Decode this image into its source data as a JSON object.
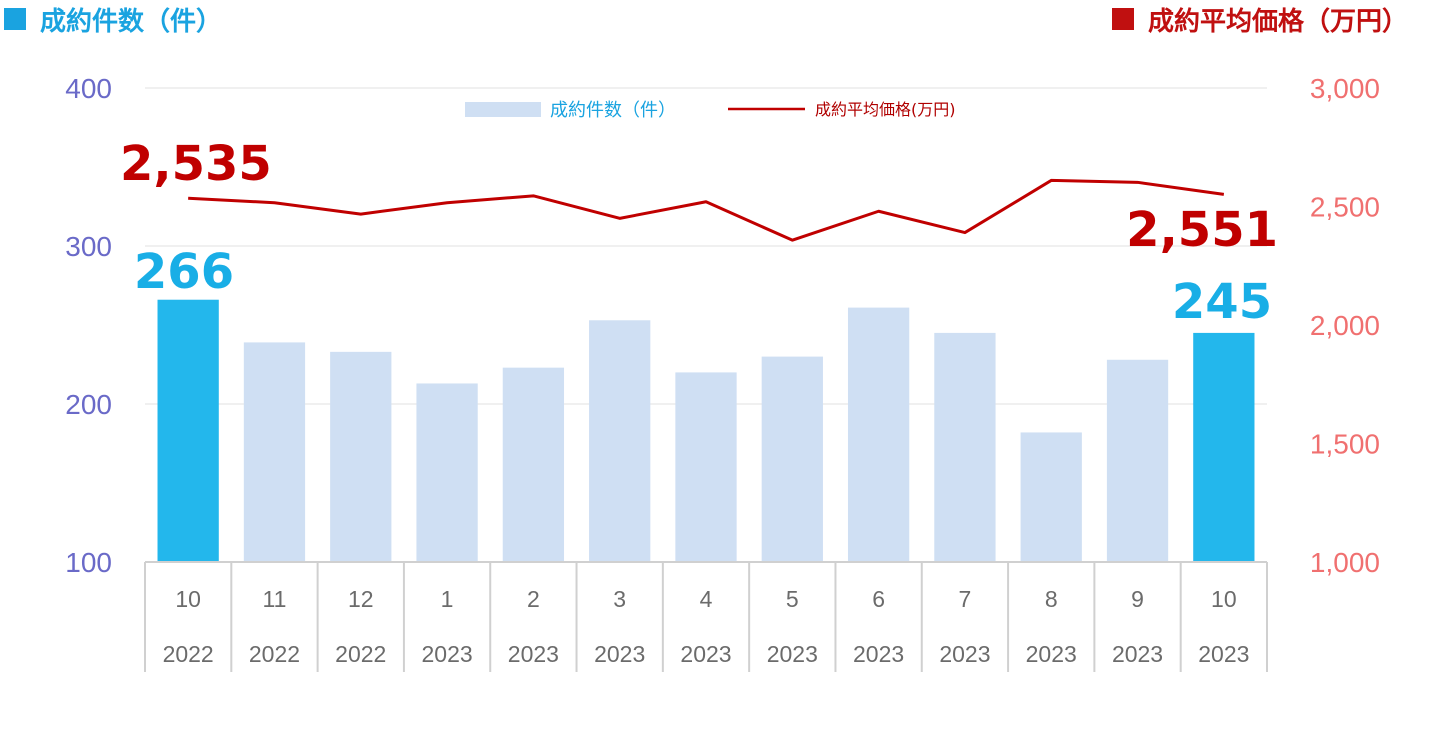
{
  "chart_data": {
    "type": "bar",
    "titles": {
      "left": "成約件数（件）",
      "right": "成約平均価格（万円）"
    },
    "categories": [
      {
        "month": "10",
        "year": "2022"
      },
      {
        "month": "11",
        "year": "2022"
      },
      {
        "month": "12",
        "year": "2022"
      },
      {
        "month": "1",
        "year": "2023"
      },
      {
        "month": "2",
        "year": "2023"
      },
      {
        "month": "3",
        "year": "2023"
      },
      {
        "month": "4",
        "year": "2023"
      },
      {
        "month": "5",
        "year": "2023"
      },
      {
        "month": "6",
        "year": "2023"
      },
      {
        "month": "7",
        "year": "2023"
      },
      {
        "month": "8",
        "year": "2023"
      },
      {
        "month": "9",
        "year": "2023"
      },
      {
        "month": "10",
        "year": "2023"
      }
    ],
    "series": [
      {
        "name": "成約件数（件）",
        "type": "bar",
        "axis": "left",
        "values": [
          266,
          239,
          233,
          213,
          223,
          253,
          220,
          230,
          261,
          245,
          182,
          228,
          245
        ],
        "highlight_indices": [
          0,
          12
        ]
      },
      {
        "name": "成約平均価格(万円)",
        "type": "line",
        "axis": "right",
        "values": [
          2535,
          2516,
          2468,
          2516,
          2545,
          2450,
          2520,
          2358,
          2480,
          2390,
          2610,
          2602,
          2551
        ]
      }
    ],
    "left_axis": {
      "ylim": [
        100,
        400
      ],
      "ticks": [
        "100",
        "200",
        "300",
        "400"
      ]
    },
    "right_axis": {
      "ylim": [
        1000,
        3000
      ],
      "ticks": [
        "1,000",
        "1,500",
        "2,000",
        "2,500",
        "3,000"
      ]
    },
    "annotations": {
      "bar_first": "266",
      "bar_last": "245",
      "line_first": "2,535",
      "line_last": "2,551"
    },
    "grid": true,
    "legend_position": "top-center"
  },
  "colors": {
    "bar": "#cfdff3",
    "bar_highlight": "#23b7ec",
    "line": "#c00000",
    "left_title": "#1aa3e0",
    "right_title": "#c01010"
  }
}
